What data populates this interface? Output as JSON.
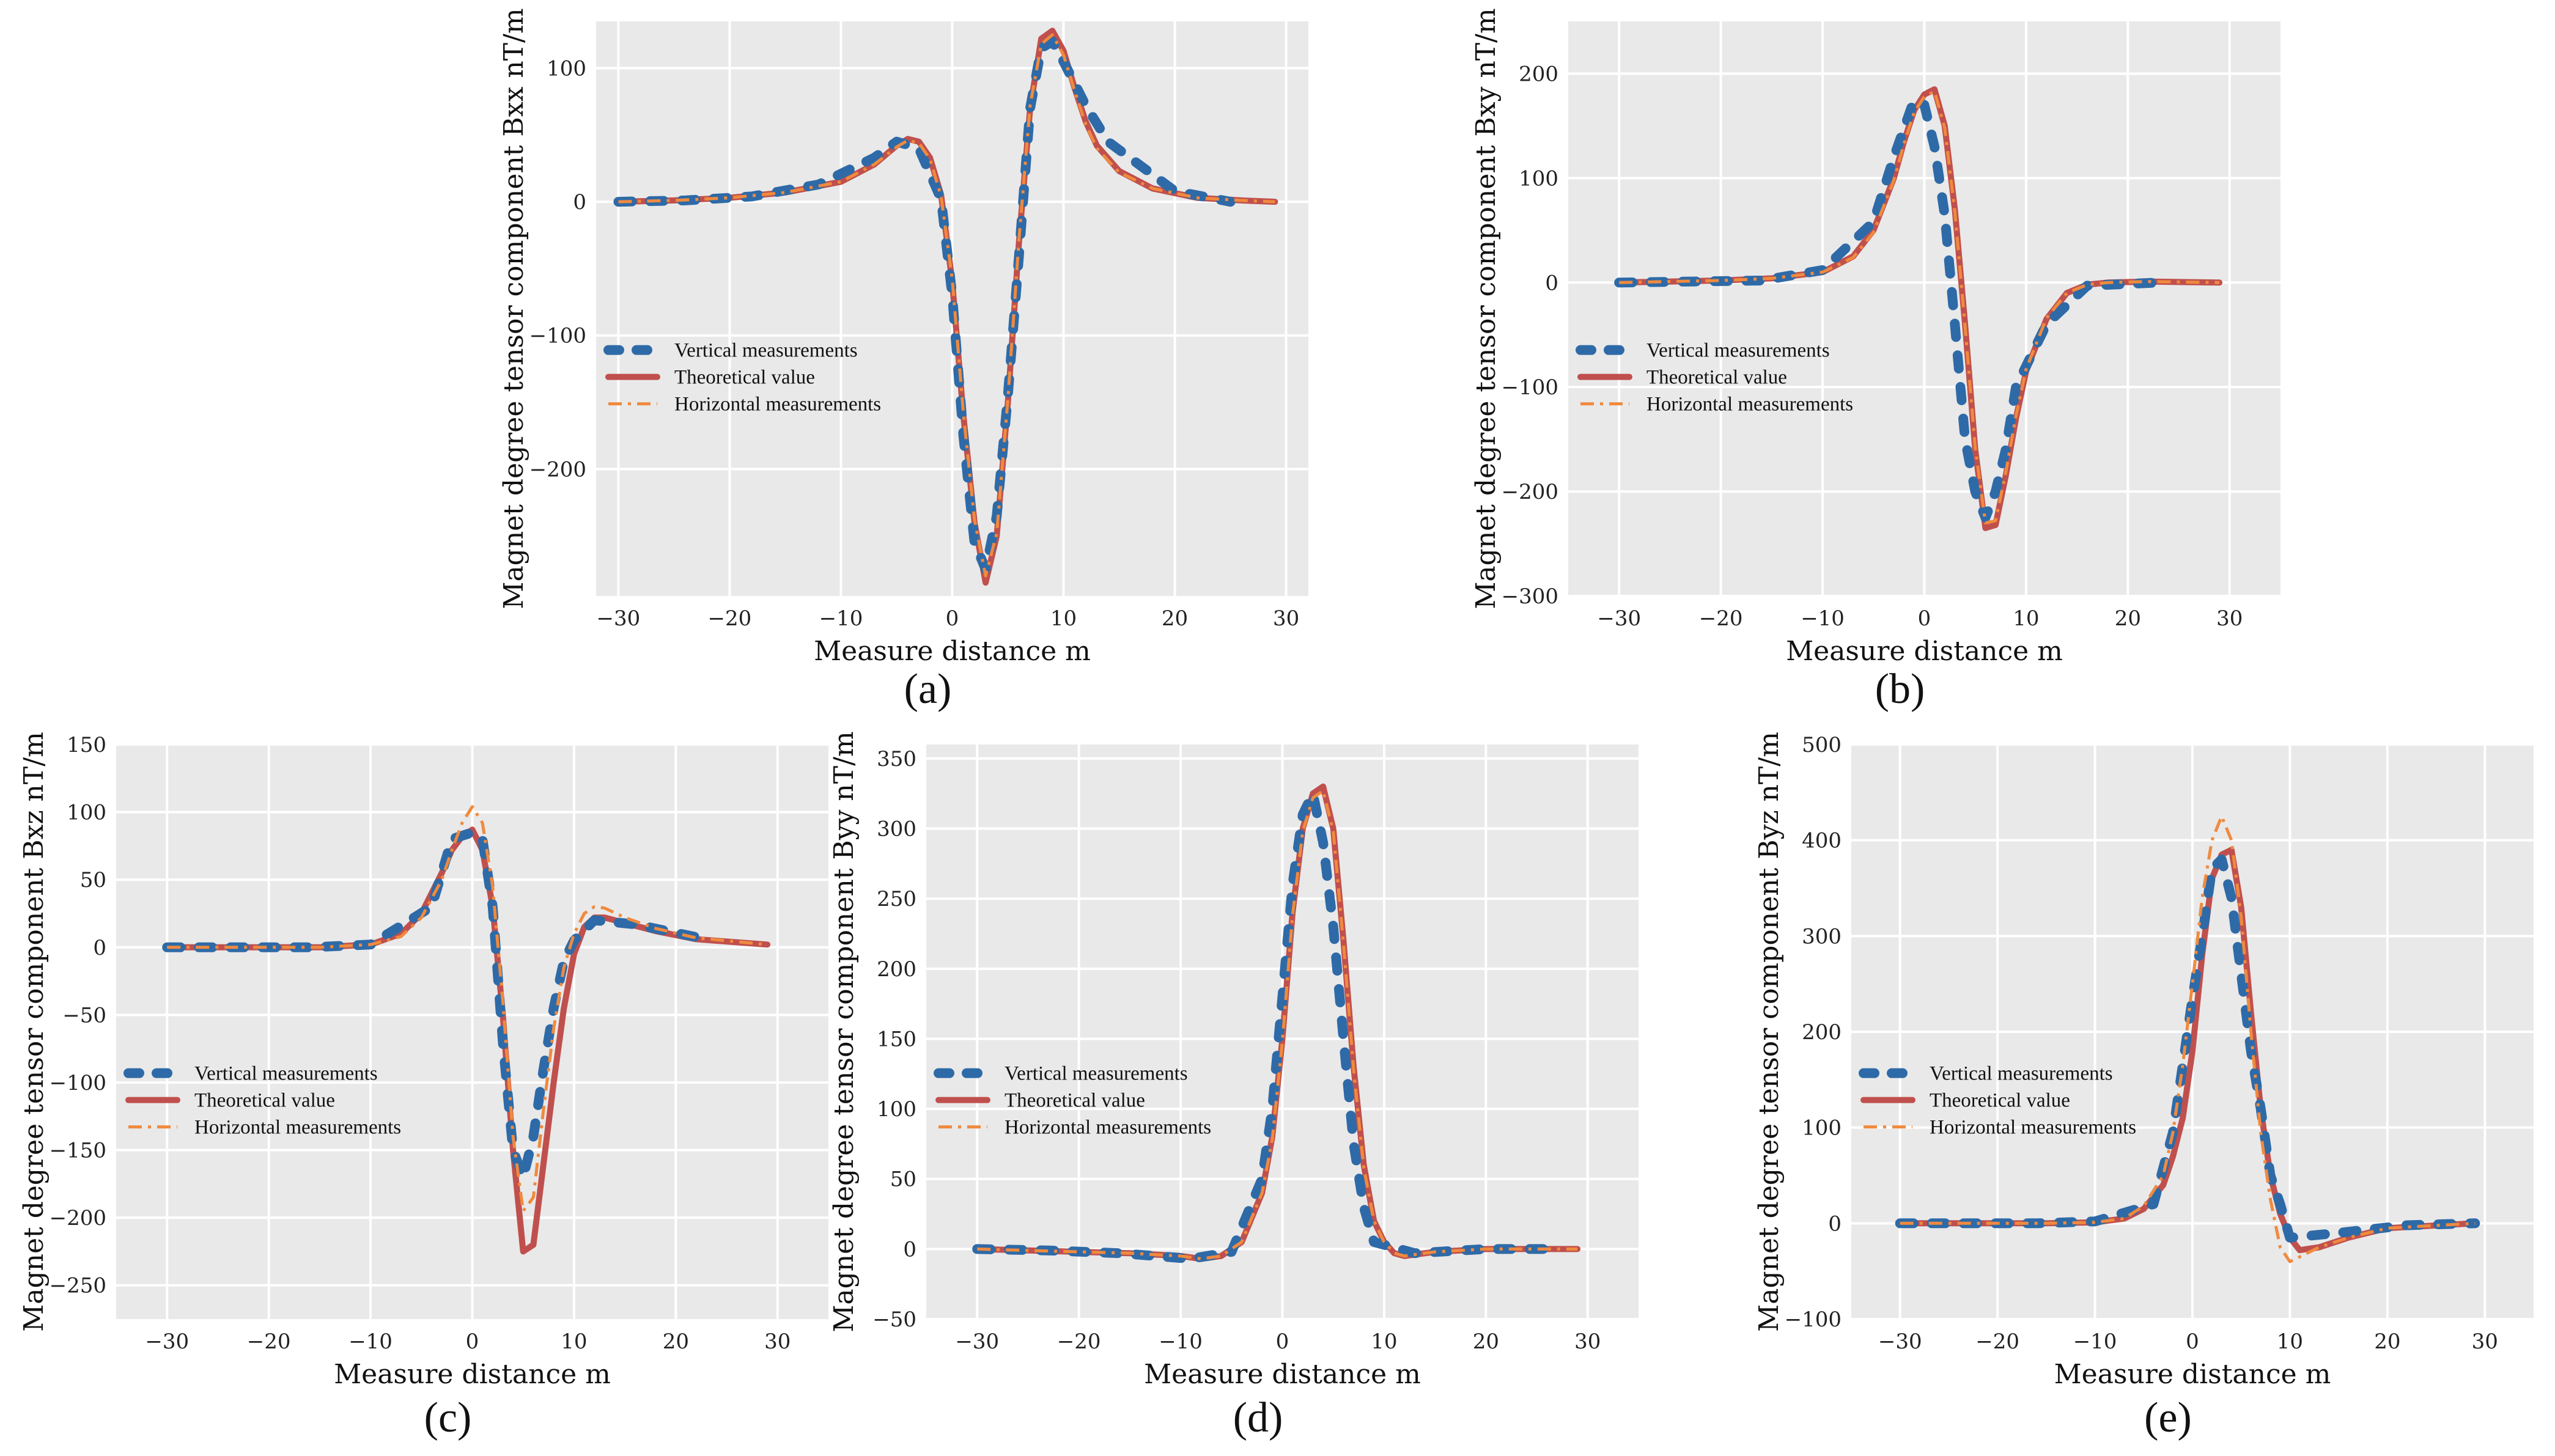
{
  "colors": {
    "vertical": "#2e6aa7",
    "theoretical": "#c0504d",
    "horizontal": "#f08a3e"
  },
  "legend": [
    "Vertical measurements",
    "Theoretical value",
    "Horizontal measurements"
  ],
  "chart_data": [
    {
      "id": "a",
      "type": "line",
      "panel_label": "(a)",
      "xlabel": "Measure distance  m",
      "ylabel": "Magnet degree tensor component Bxx nT/m",
      "xlim": [
        -32,
        32
      ],
      "ylim": [
        -295,
        135
      ],
      "xticks": [
        -30,
        -20,
        -10,
        0,
        10,
        20,
        30
      ],
      "yticks": [
        -200,
        -100,
        0,
        100
      ],
      "legend_position": "center-left",
      "series": [
        {
          "name": "Theoretical value",
          "x": [
            -30,
            -25,
            -20,
            -15,
            -10,
            -7,
            -5,
            -4,
            -3,
            -2,
            -1,
            0,
            1,
            2,
            3,
            4,
            5,
            6,
            7,
            8,
            9,
            10,
            11,
            12,
            13,
            15,
            18,
            22,
            26,
            29
          ],
          "y": [
            0,
            1,
            3,
            7,
            15,
            28,
            42,
            47,
            45,
            33,
            5,
            -60,
            -160,
            -240,
            -285,
            -250,
            -150,
            -30,
            70,
            122,
            128,
            113,
            85,
            60,
            42,
            23,
            10,
            3,
            1,
            0
          ]
        },
        {
          "name": "Vertical measurements",
          "x": [
            -30,
            -24,
            -18,
            -12,
            -7,
            -5,
            -3,
            -1,
            0,
            1,
            2,
            3,
            4,
            5,
            6,
            7,
            8,
            9,
            10,
            12,
            14,
            20,
            25
          ],
          "y": [
            0,
            1,
            4,
            13,
            33,
            45,
            40,
            2,
            -70,
            -175,
            -255,
            -275,
            -235,
            -145,
            -40,
            70,
            115,
            120,
            105,
            72,
            45,
            8,
            0
          ]
        },
        {
          "name": "Horizontal measurements",
          "x": [
            -30,
            -25,
            -20,
            -15,
            -10,
            -7,
            -5,
            -4,
            -3,
            -2,
            -1,
            0,
            1,
            2,
            3,
            4,
            5,
            6,
            7,
            8,
            9,
            10,
            11,
            12,
            13,
            15,
            18,
            22,
            26,
            29
          ],
          "y": [
            0,
            1,
            3,
            7,
            15,
            28,
            41,
            46,
            44,
            32,
            4,
            -58,
            -158,
            -238,
            -280,
            -248,
            -148,
            -28,
            72,
            118,
            125,
            110,
            83,
            58,
            40,
            22,
            10,
            3,
            1,
            0
          ]
        }
      ]
    },
    {
      "id": "b",
      "type": "line",
      "panel_label": "(b)",
      "xlabel": "Measure distance  m",
      "ylabel": "Magnet degree tensor component Bxy nT/m",
      "xlim": [
        -35,
        35
      ],
      "ylim": [
        -300,
        250
      ],
      "xticks": [
        -30,
        -20,
        -10,
        0,
        10,
        20,
        30
      ],
      "yticks": [
        -300,
        -200,
        -100,
        0,
        100,
        200
      ],
      "legend_position": "center-left",
      "series": [
        {
          "name": "Theoretical value",
          "x": [
            -30,
            -25,
            -20,
            -15,
            -10,
            -7,
            -5,
            -3,
            -2,
            -1,
            0,
            1,
            2,
            3,
            4,
            5,
            6,
            7,
            8,
            9,
            10,
            12,
            14,
            16,
            18,
            22,
            29
          ],
          "y": [
            0,
            1,
            2,
            4,
            10,
            25,
            50,
            100,
            135,
            165,
            180,
            185,
            150,
            70,
            -40,
            -160,
            -235,
            -232,
            -185,
            -130,
            -85,
            -35,
            -10,
            -2,
            0,
            1,
            0
          ]
        },
        {
          "name": "Vertical measurements",
          "x": [
            -30,
            -23,
            -16,
            -10,
            -5,
            -3,
            -1,
            0,
            1,
            2,
            3,
            4,
            5,
            6,
            7,
            8,
            9,
            12,
            16,
            23
          ],
          "y": [
            0,
            1,
            2,
            12,
            58,
            120,
            175,
            170,
            130,
            65,
            -40,
            -150,
            -200,
            -225,
            -200,
            -160,
            -100,
            -40,
            -3,
            0
          ]
        },
        {
          "name": "Horizontal measurements",
          "x": [
            -30,
            -25,
            -20,
            -15,
            -10,
            -7,
            -5,
            -3,
            -2,
            -1,
            0,
            1,
            2,
            3,
            4,
            5,
            6,
            7,
            8,
            9,
            10,
            12,
            14,
            16,
            18,
            22,
            29
          ],
          "y": [
            0,
            1,
            2,
            4,
            10,
            24,
            48,
            98,
            133,
            163,
            178,
            183,
            148,
            68,
            -42,
            -158,
            -230,
            -228,
            -182,
            -128,
            -83,
            -34,
            -10,
            -2,
            0,
            1,
            0
          ]
        }
      ]
    },
    {
      "id": "c",
      "type": "line",
      "panel_label": "(c)",
      "xlabel": "Measure distance  m",
      "ylabel": "Magnet degree tensor component Bxz nT/m",
      "xlim": [
        -35,
        35
      ],
      "ylim": [
        -275,
        150
      ],
      "xticks": [
        -30,
        -20,
        -10,
        0,
        10,
        20,
        30
      ],
      "yticks": [
        -250,
        -200,
        -150,
        -100,
        -50,
        0,
        50,
        100,
        150
      ],
      "legend_position": "center-left",
      "series": [
        {
          "name": "Theoretical value",
          "x": [
            -30,
            -20,
            -15,
            -10,
            -7,
            -5,
            -3,
            -2,
            -1,
            0,
            1,
            2,
            3,
            4,
            5,
            6,
            7,
            8,
            9,
            10,
            11,
            12,
            13,
            15,
            18,
            22,
            29
          ],
          "y": [
            0,
            0,
            0,
            2,
            10,
            25,
            55,
            72,
            82,
            87,
            72,
            30,
            -50,
            -150,
            -225,
            -220,
            -160,
            -100,
            -45,
            -5,
            15,
            22,
            22,
            18,
            12,
            6,
            2
          ]
        },
        {
          "name": "Vertical measurements",
          "x": [
            -30,
            -23,
            -16,
            -10,
            -4,
            -2,
            0,
            1,
            2,
            3,
            4,
            5,
            6,
            7,
            8,
            9,
            10,
            12,
            16,
            23
          ],
          "y": [
            0,
            0,
            0,
            2,
            30,
            80,
            85,
            80,
            30,
            -70,
            -150,
            -170,
            -140,
            -90,
            -45,
            -10,
            5,
            20,
            17,
            6
          ]
        },
        {
          "name": "Horizontal measurements",
          "x": [
            -30,
            -20,
            -15,
            -10,
            -7,
            -5,
            -3,
            -2,
            -1,
            0,
            1,
            2,
            3,
            4,
            5,
            6,
            7,
            8,
            9,
            10,
            11,
            12,
            13,
            15,
            18,
            22,
            29
          ],
          "y": [
            0,
            0,
            0,
            2,
            8,
            22,
            50,
            72,
            92,
            104,
            92,
            45,
            -40,
            -140,
            -195,
            -185,
            -120,
            -60,
            -15,
            10,
            25,
            30,
            29,
            22,
            14,
            7,
            2
          ]
        }
      ]
    },
    {
      "id": "d",
      "type": "line",
      "panel_label": "(d)",
      "xlabel": "Measure distance  m",
      "ylabel": "Magnet degree tensor component Byy nT/m",
      "xlim": [
        -35,
        35
      ],
      "ylim": [
        -50,
        360
      ],
      "xticks": [
        -30,
        -20,
        -10,
        0,
        10,
        20,
        30
      ],
      "yticks": [
        -50,
        0,
        50,
        100,
        150,
        200,
        250,
        300,
        350
      ],
      "legend_position": "center-left",
      "series": [
        {
          "name": "Theoretical value",
          "x": [
            -30,
            -20,
            -15,
            -10,
            -8,
            -6,
            -4,
            -2,
            -1,
            0,
            1,
            2,
            3,
            4,
            5,
            6,
            7,
            8,
            9,
            10,
            11,
            12,
            15,
            20,
            29
          ],
          "y": [
            0,
            -2,
            -3,
            -5,
            -7,
            -5,
            5,
            40,
            80,
            150,
            240,
            300,
            325,
            330,
            300,
            220,
            130,
            60,
            20,
            5,
            -3,
            -5,
            -2,
            0,
            0
          ]
        },
        {
          "name": "Vertical measurements",
          "x": [
            -30,
            -23,
            -16,
            -9,
            -5,
            -2,
            -1,
            0,
            1,
            2,
            3,
            4,
            5,
            6,
            7,
            8,
            9,
            13,
            20,
            27
          ],
          "y": [
            0,
            -1,
            -3,
            -7,
            -2,
            50,
            100,
            180,
            260,
            310,
            325,
            290,
            230,
            150,
            75,
            30,
            5,
            -3,
            0,
            0
          ]
        },
        {
          "name": "Horizontal measurements",
          "x": [
            -30,
            -20,
            -15,
            -10,
            -8,
            -6,
            -4,
            -2,
            -1,
            0,
            1,
            2,
            3,
            4,
            5,
            6,
            7,
            8,
            9,
            10,
            11,
            12,
            15,
            20,
            29
          ],
          "y": [
            0,
            -2,
            -3,
            -5,
            -7,
            -5,
            5,
            40,
            78,
            148,
            238,
            298,
            322,
            327,
            298,
            218,
            128,
            58,
            20,
            5,
            -3,
            -5,
            -2,
            0,
            0
          ]
        }
      ]
    },
    {
      "id": "e",
      "type": "line",
      "panel_label": "(e)",
      "xlabel": "Measure distance  m",
      "ylabel": "Magnet degree tensor component Byz nT/m",
      "xlim": [
        -35,
        35
      ],
      "ylim": [
        -100,
        500
      ],
      "xticks": [
        -30,
        -20,
        -10,
        0,
        10,
        20,
        30
      ],
      "yticks": [
        -100,
        0,
        100,
        200,
        300,
        400,
        500
      ],
      "legend_position": "center-left",
      "series": [
        {
          "name": "Theoretical value",
          "x": [
            -30,
            -20,
            -15,
            -10,
            -7,
            -5,
            -3,
            -2,
            -1,
            0,
            1,
            2,
            3,
            4,
            5,
            6,
            7,
            8,
            9,
            10,
            11,
            13,
            16,
            20,
            29
          ],
          "y": [
            0,
            0,
            0,
            1,
            5,
            15,
            40,
            70,
            110,
            180,
            280,
            360,
            385,
            390,
            330,
            220,
            120,
            50,
            10,
            -15,
            -28,
            -25,
            -15,
            -5,
            0
          ]
        },
        {
          "name": "Vertical measurements",
          "x": [
            -30,
            -23,
            -16,
            -10,
            -4,
            -2,
            -1,
            0,
            1,
            2,
            3,
            4,
            5,
            6,
            7,
            8,
            9,
            10,
            15,
            22,
            29
          ],
          "y": [
            0,
            0,
            0,
            2,
            20,
            95,
            165,
            235,
            300,
            370,
            380,
            340,
            260,
            180,
            120,
            50,
            20,
            -15,
            -10,
            -2,
            0
          ]
        },
        {
          "name": "Horizontal measurements",
          "x": [
            -30,
            -20,
            -15,
            -10,
            -7,
            -5,
            -3,
            -2,
            -1,
            0,
            1,
            2,
            3,
            4,
            5,
            6,
            7,
            8,
            9,
            10,
            11,
            13,
            16,
            20,
            29
          ],
          "y": [
            0,
            0,
            0,
            1,
            5,
            18,
            50,
            95,
            165,
            250,
            340,
            400,
            425,
            400,
            320,
            200,
            95,
            25,
            -25,
            -40,
            -35,
            -25,
            -15,
            -5,
            0
          ]
        }
      ]
    }
  ]
}
